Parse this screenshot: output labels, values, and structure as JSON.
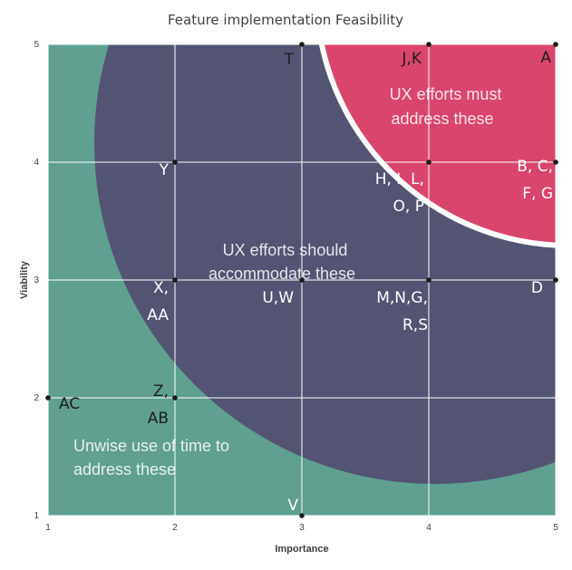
{
  "chart_data": {
    "type": "scatter",
    "title": "Feature implementation Feasibility",
    "xlabel": "Importance",
    "ylabel": "Viability",
    "xlim": [
      1,
      5
    ],
    "ylim": [
      1,
      5
    ],
    "xticks": [
      "1",
      "2",
      "3",
      "4",
      "5"
    ],
    "yticks": [
      "1",
      "2",
      "3",
      "4",
      "5"
    ],
    "grid": true,
    "regions": [
      {
        "text": [
          "Unwise use of time to",
          "address these"
        ],
        "color": "#5fa090"
      },
      {
        "text": [
          "UX efforts should",
          "accommodate  these"
        ],
        "color": "#535471"
      },
      {
        "text": [
          "UX efforts must",
          "address these"
        ],
        "color": "#d9456c"
      }
    ],
    "points": [
      {
        "x": 1,
        "y": 2,
        "label": [
          "AC"
        ]
      },
      {
        "x": 2,
        "y": 4,
        "label": [
          "Y"
        ]
      },
      {
        "x": 2,
        "y": 3,
        "label": [
          "X,",
          "AA"
        ]
      },
      {
        "x": 2,
        "y": 2,
        "label": [
          "Z,",
          "AB"
        ]
      },
      {
        "x": 3,
        "y": 5,
        "label": [
          "T"
        ]
      },
      {
        "x": 3,
        "y": 3,
        "label": [
          "U,W"
        ]
      },
      {
        "x": 3,
        "y": 1,
        "label": [
          "V"
        ]
      },
      {
        "x": 4,
        "y": 5,
        "label": [
          "J,K"
        ]
      },
      {
        "x": 4,
        "y": 4,
        "label": [
          "H, I, L,",
          "O, P"
        ]
      },
      {
        "x": 4,
        "y": 3,
        "label": [
          "M,N,G,",
          "R,S"
        ]
      },
      {
        "x": 5,
        "y": 5,
        "label": [
          "A"
        ]
      },
      {
        "x": 5,
        "y": 4,
        "label": [
          "B, C,",
          "F, G"
        ]
      },
      {
        "x": 5,
        "y": 3,
        "label": [
          "D"
        ]
      }
    ]
  }
}
